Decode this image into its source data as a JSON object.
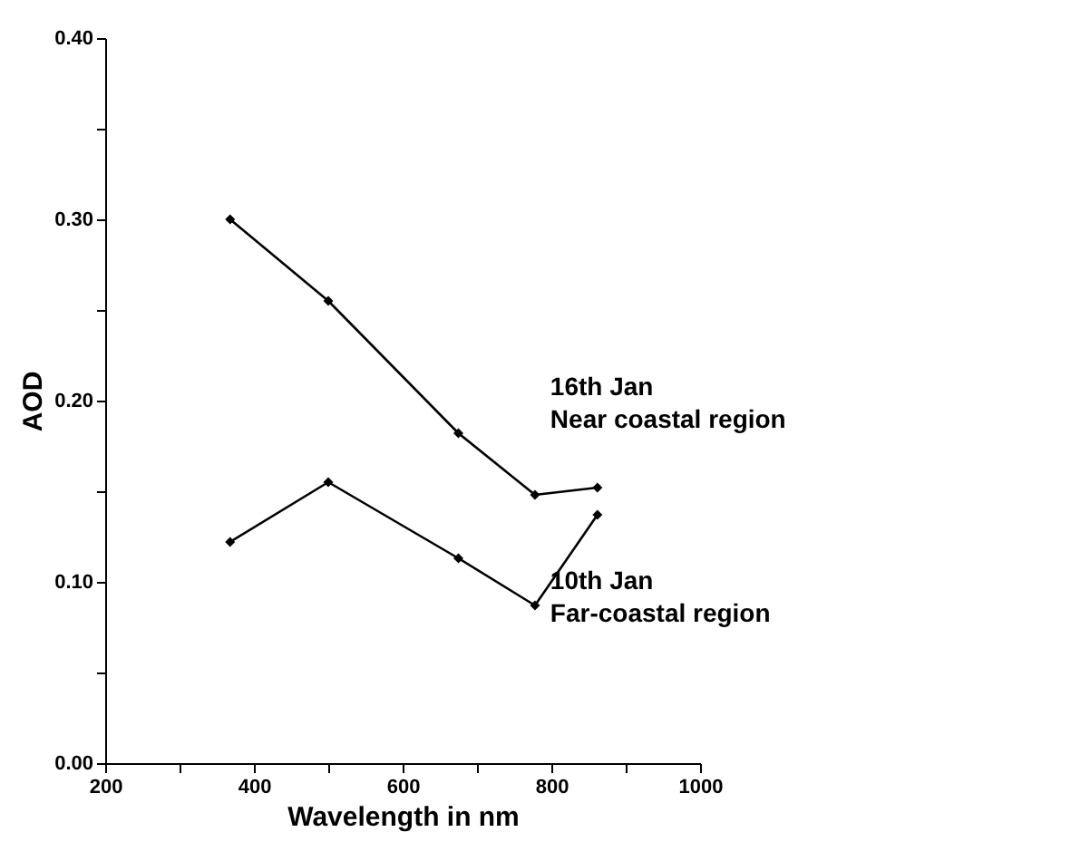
{
  "chart_data": {
    "type": "line",
    "xlabel": "Wavelength in nm",
    "ylabel": "AOD",
    "x": [
      368,
      500,
      675,
      778,
      862
    ],
    "series": [
      {
        "name": "16th Jan\nNear coastal region",
        "color": "#000000",
        "values": [
          0.3,
          0.255,
          0.182,
          0.148,
          0.152
        ]
      },
      {
        "name": "10th Jan\nFar-coastal region",
        "color": "#000000",
        "values": [
          0.122,
          0.155,
          0.113,
          0.087,
          0.137
        ]
      }
    ],
    "xlim": [
      200,
      1000
    ],
    "xticks": [
      200,
      {
        "value": 300,
        "label": null
      },
      400,
      {
        "value": 500,
        "label": null
      },
      600,
      {
        "value": 700,
        "label": null
      },
      800,
      {
        "value": 900,
        "label": null
      },
      1000
    ],
    "ylim": [
      0,
      0.4
    ],
    "yticks": [
      {
        "value": 0,
        "label": "0.00"
      },
      {
        "value": 0.05,
        "label": null
      },
      {
        "value": 0.1,
        "label": "0.10"
      },
      {
        "value": 0.15,
        "label": null
      },
      {
        "value": 0.2,
        "label": "0.20"
      },
      {
        "value": 0.25,
        "label": null
      },
      {
        "value": 0.3,
        "label": "0.30"
      },
      {
        "value": 0.35,
        "label": null
      },
      {
        "value": 0.4,
        "label": "0.40"
      }
    ],
    "grid": false,
    "marker": "diamond",
    "line_style": "solid"
  }
}
